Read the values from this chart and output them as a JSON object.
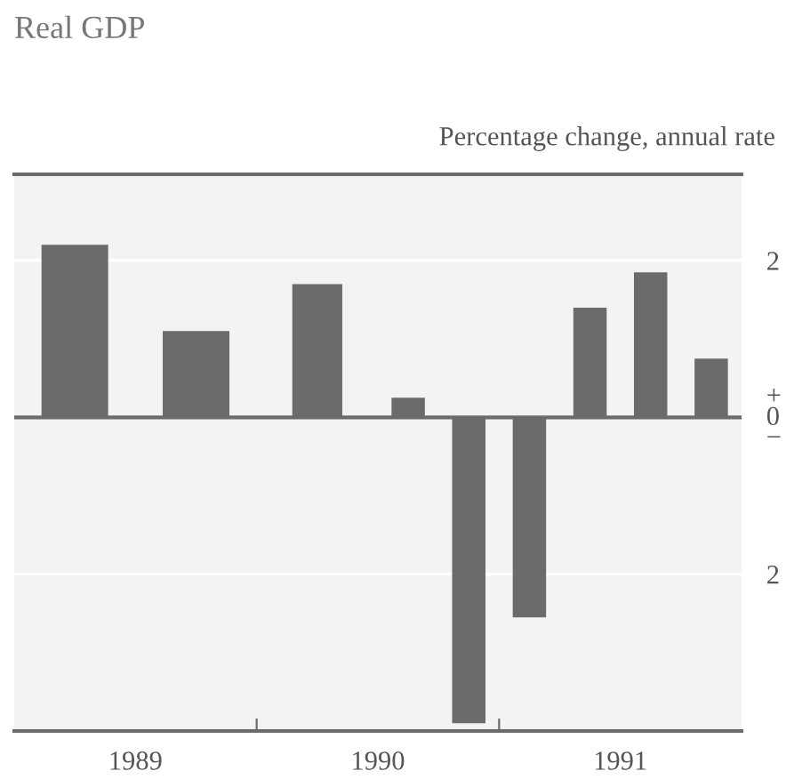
{
  "chart_data": {
    "type": "bar",
    "title": "Real GDP",
    "ylabel": "Percentage change, annual rate",
    "x": [
      1989.25,
      1989.75,
      1990.25,
      1990.625,
      1990.875,
      1991.125,
      1991.375,
      1991.625,
      1991.875
    ],
    "values": [
      2.2,
      1.1,
      1.7,
      0.25,
      -3.9,
      -2.55,
      1.4,
      1.85,
      0.75
    ],
    "color": "#6b6b6b",
    "xlim": [
      1989,
      1992
    ],
    "xticks": [
      {
        "value": 1989.5,
        "label": "1989"
      },
      {
        "value": 1990,
        "label": null
      },
      {
        "value": 1990.5,
        "label": "1990"
      },
      {
        "value": 1991,
        "label": null
      },
      {
        "value": 1991.5,
        "label": "1991"
      }
    ],
    "ylim": [
      -4,
      3.1
    ],
    "yticks": [
      {
        "value": -2,
        "label": "2"
      },
      {
        "value": 0,
        "label": "+\n0\n−"
      },
      2
    ],
    "ref_lines": [
      {
        "axis": "y",
        "value": 0,
        "label": null,
        "color": "#6b6b6b"
      }
    ],
    "grid": "y"
  }
}
